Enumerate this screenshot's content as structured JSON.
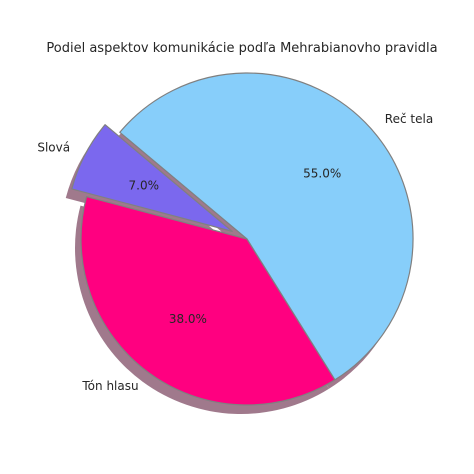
{
  "chart_data": {
    "type": "pie",
    "title": "Podiel aspektov komunikácie podľa Mehrabianovho pravidla",
    "categories": [
      "Slová",
      "Tón hlasu",
      "Reč tela"
    ],
    "values": [
      7.0,
      38.0,
      55.0
    ],
    "value_labels": [
      "7.0%",
      "38.0%",
      "55.0%"
    ],
    "colors": [
      "#7b68ee",
      "#ff0080",
      "#87cefa"
    ],
    "explode": [
      0.1,
      0,
      0
    ],
    "shadow": true,
    "start_angle_deg": 140,
    "direction": "counterclockwise",
    "edge_color": "#808080",
    "shadow_color": "#a0798c"
  }
}
